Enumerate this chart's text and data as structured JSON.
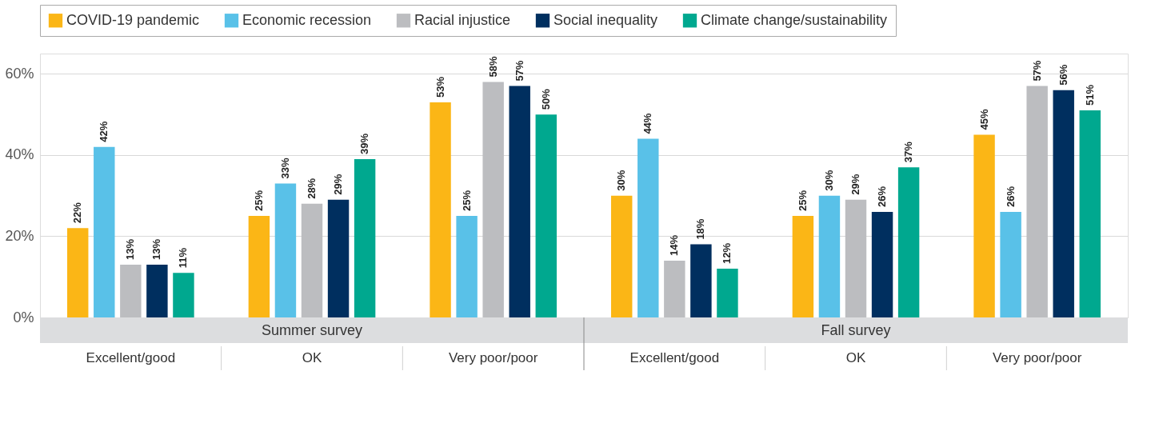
{
  "chart_data": {
    "type": "bar",
    "categories": [
      "Excellent/good",
      "OK",
      "Very poor/poor",
      "Excellent/good",
      "OK",
      "Very poor/poor"
    ],
    "series": [
      {
        "name": "COVID-19 pandemic",
        "color": "#fbb616",
        "values": [
          22,
          25,
          53,
          30,
          25,
          45
        ],
        "value_labels": [
          "22%",
          "25%",
          "53%",
          "30%",
          "25%",
          "45%"
        ]
      },
      {
        "name": "Economic recession",
        "color": "#59c1e8",
        "values": [
          42,
          33,
          25,
          44,
          30,
          26
        ],
        "value_labels": [
          "42%",
          "33%",
          "25%",
          "44%",
          "30%",
          "26%"
        ]
      },
      {
        "name": "Racial injustice",
        "color": "#bcbdc0",
        "values": [
          13,
          28,
          58,
          14,
          29,
          57
        ],
        "value_labels": [
          "13%",
          "28%",
          "58%",
          "14%",
          "29%",
          "57%"
        ]
      },
      {
        "name": "Social inequality",
        "color": "#002f5f",
        "values": [
          13,
          29,
          57,
          18,
          26,
          56
        ],
        "value_labels": [
          "13%",
          "29%",
          "57%",
          "18%",
          "26%",
          "56%"
        ]
      },
      {
        "name": "Climate change/sustainability",
        "color": "#00a88f",
        "values": [
          11,
          39,
          50,
          12,
          37,
          51
        ],
        "value_labels": [
          "11%",
          "39%",
          "50%",
          "12%",
          "37%",
          "51%"
        ]
      }
    ],
    "annotations": [
      "Summer survey",
      "Fall survey"
    ],
    "ylim": [
      0,
      65
    ],
    "yticks": [
      {
        "value": 0,
        "label": "0%"
      },
      {
        "value": 20,
        "label": "20%"
      },
      {
        "value": 40,
        "label": "40%"
      },
      {
        "value": 60,
        "label": "60%"
      }
    ],
    "grid": "y",
    "legend": "top"
  }
}
